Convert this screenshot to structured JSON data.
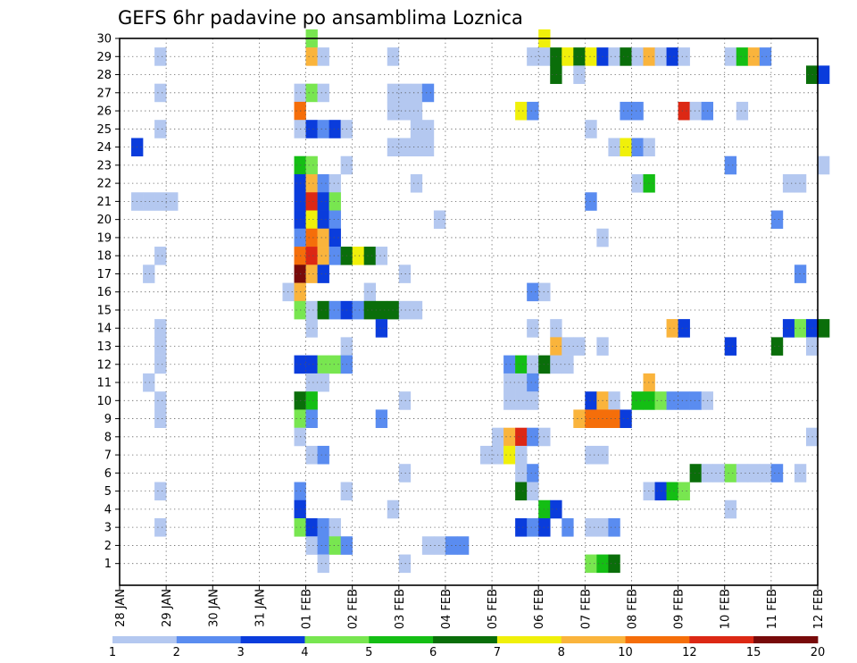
{
  "chart_data": {
    "type": "heatmap",
    "title": "GEFS 6hr padavine po ansamblima Loznica",
    "x_tick_labels": [
      "28 JAN",
      "29 JAN",
      "30 JAN",
      "31 JAN",
      "01 FEB",
      "02 FEB",
      "03 FEB",
      "04 FEB",
      "05 FEB",
      "06 FEB",
      "07 FEB",
      "08 FEB",
      "09 FEB",
      "10 FEB",
      "11 FEB",
      "12 FEB"
    ],
    "y_range": [
      0,
      30
    ],
    "time_step_hours": 6,
    "x_range_days": [
      0,
      15
    ],
    "grid": true,
    "colorbar": {
      "levels": [
        "1",
        "2",
        "3",
        "4",
        "5",
        "6",
        "7",
        "8",
        "10",
        "12",
        "15",
        "20"
      ],
      "colors": [
        "#b4c8f0",
        "#5a8cf0",
        "#0a3cdc",
        "#78e650",
        "#14be14",
        "#0a6e0a",
        "#f0f00a",
        "#fab43c",
        "#f56e0a",
        "#dc2814",
        "#780a0a"
      ]
    },
    "cells": [
      [
        30,
        16,
        3
      ],
      [
        30,
        36,
        6
      ],
      [
        29,
        3,
        0
      ],
      [
        29,
        16,
        7
      ],
      [
        29,
        17,
        0
      ],
      [
        29,
        23,
        0
      ],
      [
        29,
        35,
        0
      ],
      [
        29,
        36,
        0
      ],
      [
        29,
        37,
        5
      ],
      [
        29,
        38,
        6
      ],
      [
        29,
        39,
        5
      ],
      [
        29,
        40,
        6
      ],
      [
        29,
        41,
        2
      ],
      [
        29,
        42,
        0
      ],
      [
        29,
        43,
        5
      ],
      [
        29,
        44,
        0
      ],
      [
        29,
        45,
        7
      ],
      [
        29,
        46,
        0
      ],
      [
        29,
        47,
        2
      ],
      [
        29,
        48,
        0
      ],
      [
        29,
        52,
        0
      ],
      [
        29,
        53,
        4
      ],
      [
        29,
        54,
        7
      ],
      [
        29,
        55,
        1
      ],
      [
        28,
        37,
        5
      ],
      [
        28,
        39,
        0
      ],
      [
        28,
        59,
        5
      ],
      [
        28,
        60,
        2
      ],
      [
        27,
        3,
        0
      ],
      [
        27,
        15,
        0
      ],
      [
        27,
        16,
        3
      ],
      [
        27,
        17,
        0
      ],
      [
        27,
        23,
        0
      ],
      [
        27,
        24,
        0
      ],
      [
        27,
        25,
        0
      ],
      [
        27,
        26,
        1
      ],
      [
        26,
        15,
        8
      ],
      [
        26,
        23,
        0
      ],
      [
        26,
        24,
        0
      ],
      [
        26,
        25,
        0
      ],
      [
        26,
        34,
        6
      ],
      [
        26,
        35,
        1
      ],
      [
        26,
        43,
        1
      ],
      [
        26,
        44,
        1
      ],
      [
        26,
        48,
        9
      ],
      [
        26,
        49,
        0
      ],
      [
        26,
        50,
        1
      ],
      [
        26,
        53,
        0
      ],
      [
        25,
        3,
        0
      ],
      [
        25,
        15,
        0
      ],
      [
        25,
        16,
        2
      ],
      [
        25,
        17,
        1
      ],
      [
        25,
        18,
        2
      ],
      [
        25,
        19,
        0
      ],
      [
        25,
        25,
        0
      ],
      [
        25,
        26,
        0
      ],
      [
        25,
        40,
        0
      ],
      [
        24,
        1,
        2
      ],
      [
        24,
        23,
        0
      ],
      [
        24,
        24,
        0
      ],
      [
        24,
        25,
        0
      ],
      [
        24,
        26,
        0
      ],
      [
        24,
        42,
        0
      ],
      [
        24,
        43,
        6
      ],
      [
        24,
        44,
        1
      ],
      [
        24,
        45,
        0
      ],
      [
        23,
        15,
        4
      ],
      [
        23,
        16,
        3
      ],
      [
        23,
        19,
        0
      ],
      [
        23,
        52,
        1
      ],
      [
        23,
        60,
        0
      ],
      [
        22,
        15,
        2
      ],
      [
        22,
        16,
        7
      ],
      [
        22,
        17,
        1
      ],
      [
        22,
        18,
        0
      ],
      [
        22,
        25,
        0
      ],
      [
        22,
        44,
        0
      ],
      [
        22,
        45,
        4
      ],
      [
        22,
        57,
        0
      ],
      [
        22,
        58,
        0
      ],
      [
        21,
        1,
        0
      ],
      [
        21,
        2,
        0
      ],
      [
        21,
        3,
        0
      ],
      [
        21,
        4,
        0
      ],
      [
        21,
        15,
        2
      ],
      [
        21,
        16,
        9
      ],
      [
        21,
        17,
        2
      ],
      [
        21,
        18,
        3
      ],
      [
        21,
        40,
        1
      ],
      [
        20,
        15,
        2
      ],
      [
        20,
        16,
        6
      ],
      [
        20,
        17,
        2
      ],
      [
        20,
        18,
        1
      ],
      [
        20,
        27,
        0
      ],
      [
        20,
        56,
        1
      ],
      [
        19,
        15,
        1
      ],
      [
        19,
        16,
        8
      ],
      [
        19,
        17,
        7
      ],
      [
        19,
        18,
        2
      ],
      [
        19,
        41,
        0
      ],
      [
        18,
        3,
        0
      ],
      [
        18,
        15,
        8
      ],
      [
        18,
        16,
        9
      ],
      [
        18,
        17,
        7
      ],
      [
        18,
        18,
        1
      ],
      [
        18,
        19,
        5
      ],
      [
        18,
        20,
        6
      ],
      [
        18,
        21,
        5
      ],
      [
        18,
        22,
        0
      ],
      [
        17,
        2,
        0
      ],
      [
        17,
        15,
        10
      ],
      [
        17,
        16,
        7
      ],
      [
        17,
        17,
        2
      ],
      [
        17,
        24,
        0
      ],
      [
        17,
        58,
        1
      ],
      [
        16,
        14,
        0
      ],
      [
        16,
        15,
        7
      ],
      [
        16,
        21,
        0
      ],
      [
        16,
        35,
        1
      ],
      [
        16,
        36,
        0
      ],
      [
        15,
        15,
        3
      ],
      [
        15,
        16,
        0
      ],
      [
        15,
        17,
        5
      ],
      [
        15,
        18,
        1
      ],
      [
        15,
        19,
        2
      ],
      [
        15,
        20,
        1
      ],
      [
        15,
        21,
        5
      ],
      [
        15,
        22,
        5
      ],
      [
        15,
        23,
        5
      ],
      [
        15,
        24,
        0
      ],
      [
        15,
        25,
        0
      ],
      [
        14,
        3,
        0
      ],
      [
        14,
        16,
        0
      ],
      [
        14,
        22,
        2
      ],
      [
        14,
        35,
        0
      ],
      [
        14,
        37,
        0
      ],
      [
        14,
        47,
        7
      ],
      [
        14,
        48,
        2
      ],
      [
        14,
        57,
        2
      ],
      [
        14,
        58,
        3
      ],
      [
        14,
        59,
        2
      ],
      [
        14,
        60,
        5
      ],
      [
        13,
        3,
        0
      ],
      [
        13,
        19,
        0
      ],
      [
        13,
        37,
        7
      ],
      [
        13,
        38,
        0
      ],
      [
        13,
        39,
        0
      ],
      [
        13,
        41,
        0
      ],
      [
        13,
        52,
        2
      ],
      [
        13,
        56,
        5
      ],
      [
        13,
        59,
        0
      ],
      [
        12,
        3,
        0
      ],
      [
        12,
        15,
        2
      ],
      [
        12,
        16,
        2
      ],
      [
        12,
        17,
        3
      ],
      [
        12,
        18,
        3
      ],
      [
        12,
        19,
        1
      ],
      [
        12,
        33,
        1
      ],
      [
        12,
        34,
        4
      ],
      [
        12,
        35,
        0
      ],
      [
        12,
        36,
        5
      ],
      [
        12,
        37,
        0
      ],
      [
        12,
        38,
        0
      ],
      [
        11,
        2,
        0
      ],
      [
        11,
        16,
        0
      ],
      [
        11,
        17,
        0
      ],
      [
        11,
        33,
        0
      ],
      [
        11,
        34,
        0
      ],
      [
        11,
        35,
        1
      ],
      [
        11,
        45,
        7
      ],
      [
        10,
        3,
        0
      ],
      [
        10,
        15,
        5
      ],
      [
        10,
        16,
        4
      ],
      [
        10,
        24,
        0
      ],
      [
        10,
        33,
        0
      ],
      [
        10,
        34,
        0
      ],
      [
        10,
        35,
        0
      ],
      [
        10,
        40,
        2
      ],
      [
        10,
        41,
        7
      ],
      [
        10,
        42,
        0
      ],
      [
        10,
        44,
        4
      ],
      [
        10,
        45,
        4
      ],
      [
        10,
        46,
        3
      ],
      [
        10,
        47,
        1
      ],
      [
        10,
        48,
        1
      ],
      [
        10,
        49,
        1
      ],
      [
        10,
        50,
        0
      ],
      [
        9,
        3,
        0
      ],
      [
        9,
        15,
        3
      ],
      [
        9,
        16,
        1
      ],
      [
        9,
        22,
        1
      ],
      [
        9,
        39,
        7
      ],
      [
        9,
        40,
        8
      ],
      [
        9,
        41,
        8
      ],
      [
        9,
        42,
        8
      ],
      [
        9,
        43,
        2
      ],
      [
        8,
        15,
        0
      ],
      [
        8,
        32,
        0
      ],
      [
        8,
        33,
        7
      ],
      [
        8,
        34,
        9
      ],
      [
        8,
        35,
        1
      ],
      [
        8,
        36,
        0
      ],
      [
        8,
        59,
        0
      ],
      [
        7,
        16,
        0
      ],
      [
        7,
        17,
        1
      ],
      [
        7,
        31,
        0
      ],
      [
        7,
        32,
        0
      ],
      [
        7,
        33,
        6
      ],
      [
        7,
        34,
        0
      ],
      [
        7,
        40,
        0
      ],
      [
        7,
        41,
        0
      ],
      [
        6,
        24,
        0
      ],
      [
        6,
        34,
        0
      ],
      [
        6,
        35,
        1
      ],
      [
        6,
        49,
        5
      ],
      [
        6,
        50,
        0
      ],
      [
        6,
        51,
        0
      ],
      [
        6,
        52,
        3
      ],
      [
        6,
        53,
        0
      ],
      [
        6,
        54,
        0
      ],
      [
        6,
        55,
        0
      ],
      [
        6,
        56,
        1
      ],
      [
        6,
        58,
        0
      ],
      [
        5,
        3,
        0
      ],
      [
        5,
        15,
        1
      ],
      [
        5,
        19,
        0
      ],
      [
        5,
        34,
        5
      ],
      [
        5,
        35,
        0
      ],
      [
        5,
        45,
        0
      ],
      [
        5,
        46,
        2
      ],
      [
        5,
        47,
        4
      ],
      [
        5,
        48,
        3
      ],
      [
        4,
        15,
        2
      ],
      [
        4,
        23,
        0
      ],
      [
        4,
        36,
        4
      ],
      [
        4,
        37,
        2
      ],
      [
        4,
        52,
        0
      ],
      [
        3,
        3,
        0
      ],
      [
        3,
        15,
        3
      ],
      [
        3,
        16,
        2
      ],
      [
        3,
        17,
        1
      ],
      [
        3,
        18,
        0
      ],
      [
        3,
        34,
        2
      ],
      [
        3,
        35,
        1
      ],
      [
        3,
        36,
        2
      ],
      [
        3,
        38,
        1
      ],
      [
        3,
        40,
        0
      ],
      [
        3,
        41,
        0
      ],
      [
        3,
        42,
        1
      ],
      [
        2,
        16,
        0
      ],
      [
        2,
        17,
        1
      ],
      [
        2,
        18,
        3
      ],
      [
        2,
        19,
        1
      ],
      [
        2,
        26,
        0
      ],
      [
        2,
        27,
        0
      ],
      [
        2,
        28,
        1
      ],
      [
        2,
        29,
        1
      ],
      [
        1,
        17,
        0
      ],
      [
        1,
        24,
        0
      ],
      [
        1,
        40,
        3
      ],
      [
        1,
        41,
        4
      ],
      [
        1,
        42,
        5
      ]
    ]
  }
}
